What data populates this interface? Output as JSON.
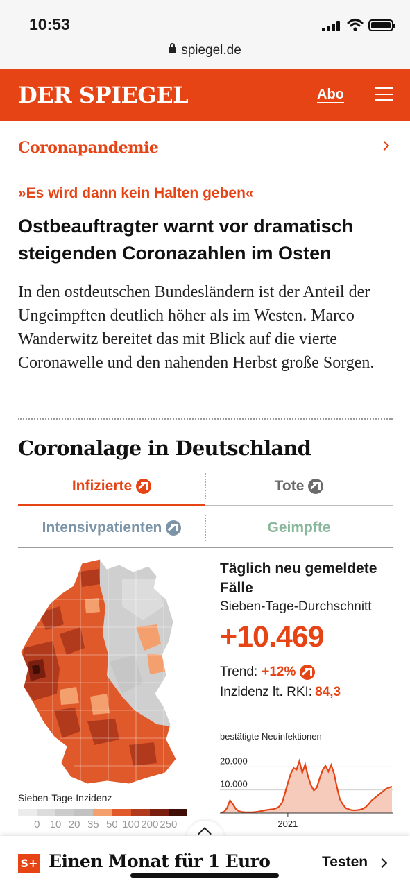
{
  "status_bar": {
    "time": "10:53",
    "url": "spiegel.de"
  },
  "header": {
    "logo": "DER SPIEGEL",
    "abo_label": "Abo"
  },
  "article": {
    "rubric": "Coronapandemie",
    "kicker": "»Es wird dann kein Halten geben«",
    "headline": "Ostbeauftragter warnt vor dramatisch steigenden Coronazahlen im Osten",
    "lead": "In den ostdeutschen Bundesländern ist der Anteil der Ungeimpften deutlich höher als im Westen. Marco Wanderwitz bereitet das mit Blick auf die vierte Coronawelle und den nahenden Herbst große Sorgen."
  },
  "corona": {
    "title": "Coronalage in Deutschland",
    "tabs": [
      {
        "label": "Infizierte",
        "active": true
      },
      {
        "label": "Tote",
        "active": false
      },
      {
        "label": "Intensivpatienten",
        "active": false
      },
      {
        "label": "Geimpfte",
        "active": false
      }
    ],
    "stats": {
      "title": "Täglich neu gemeldete Fälle",
      "subtitle": "Sieben-Tage-Durchschnitt",
      "value": "+10.469",
      "trend_label": "Trend:",
      "trend_value": "+12%",
      "incidence_label": "Inzidenz lt. RKI:",
      "incidence_value": "84,3"
    },
    "legend": {
      "title": "Sieben-Tage-Inzidenz",
      "labels": [
        "0",
        "10",
        "20",
        "35",
        "50",
        "100",
        "200",
        "250"
      ],
      "colors": [
        "#ececec",
        "#dcdcdc",
        "#cbcbcb",
        "#c2c2c2",
        "#f4a06e",
        "#e0592a",
        "#b23a1c",
        "#7a1f0f",
        "#3f0e06"
      ]
    }
  },
  "chart_data": {
    "type": "area",
    "title": "bestätigte Neuinfektionen",
    "y_ticks": [
      "20.000",
      "10.000"
    ],
    "x_tick": "2021",
    "ylim": [
      0,
      27000
    ],
    "x": [
      0,
      1,
      2,
      3,
      4,
      5,
      6,
      7,
      8,
      9,
      10,
      11,
      12,
      13,
      14,
      15,
      16,
      17,
      18,
      19,
      20,
      21,
      22,
      23,
      24,
      25,
      26,
      27,
      28,
      29,
      30,
      31,
      32,
      33,
      34,
      35,
      36,
      37,
      38,
      39,
      40,
      41,
      42,
      43,
      44,
      45,
      46,
      47,
      48,
      49,
      50,
      51,
      52,
      53,
      54,
      55,
      56,
      57,
      58,
      59
    ],
    "values": [
      200,
      600,
      2200,
      5500,
      3800,
      1900,
      900,
      500,
      400,
      350,
      350,
      400,
      500,
      700,
      900,
      1200,
      1400,
      1600,
      1700,
      2100,
      2800,
      4500,
      8500,
      13000,
      17000,
      19500,
      18800,
      22500,
      17500,
      21000,
      15800,
      12000,
      9800,
      11000,
      15000,
      18500,
      20500,
      18000,
      20800,
      17000,
      11000,
      6000,
      3800,
      2200,
      1700,
      1300,
      1200,
      1300,
      1500,
      1900,
      2700,
      4000,
      5500,
      6500,
      7500,
      8500,
      9500,
      10500,
      11000,
      11400
    ]
  }
}
